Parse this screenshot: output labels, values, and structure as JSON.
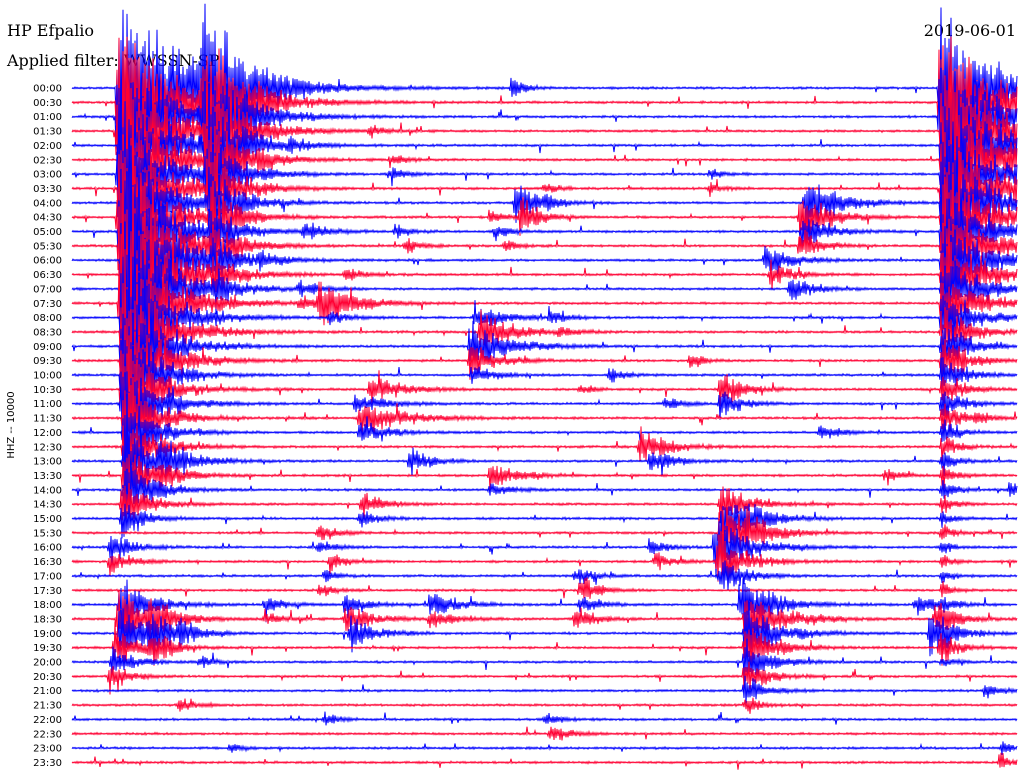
{
  "header": {
    "station": "HP Efpalio",
    "filter": "Applied filter: WWSSN-SP",
    "date": "2019-06-01"
  },
  "chart_data": {
    "type": "line",
    "title": "HP Efpalio",
    "ylabel": "HHZ -- 10000",
    "time_labels": [
      "00:00",
      "00:30",
      "01:00",
      "01:30",
      "02:00",
      "02:30",
      "03:00",
      "03:30",
      "04:00",
      "04:30",
      "05:00",
      "05:30",
      "06:00",
      "06:30",
      "07:00",
      "07:30",
      "08:00",
      "08:30",
      "09:00",
      "09:30",
      "10:00",
      "10:30",
      "11:00",
      "11:30",
      "12:00",
      "12:30",
      "13:00",
      "13:30",
      "14:00",
      "14:30",
      "15:00",
      "15:30",
      "16:00",
      "16:30",
      "17:00",
      "17:30",
      "18:00",
      "18:30",
      "19:00",
      "19:30",
      "20:00",
      "20:30",
      "21:00",
      "21:30",
      "22:00",
      "22:30",
      "23:00",
      "23:30"
    ],
    "trace_colors": [
      "#0000ff",
      "#ff0033"
    ],
    "x_range_minutes": [
      0,
      30
    ]
  }
}
